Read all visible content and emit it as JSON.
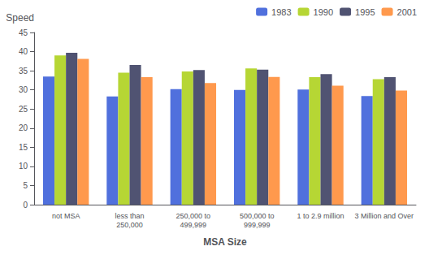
{
  "chart_data": {
    "type": "bar",
    "categories": [
      "not MSA",
      "less than\n250,000",
      "250,000 to\n499,999",
      "500,000 to\n999,999",
      "1 to 2.9 million",
      "3 Million and Over"
    ],
    "series": [
      {
        "name": "1983",
        "values": [
          33.5,
          28.3,
          30.2,
          30.0,
          30.1,
          28.4
        ]
      },
      {
        "name": "1990",
        "values": [
          39.0,
          34.5,
          34.8,
          35.6,
          33.3,
          32.8
        ]
      },
      {
        "name": "1995",
        "values": [
          39.7,
          36.5,
          35.2,
          35.3,
          34.1,
          33.3
        ]
      },
      {
        "name": "2001",
        "values": [
          38.1,
          33.3,
          31.8,
          33.4,
          31.1,
          29.8
        ]
      }
    ],
    "x_label": "MSA Size",
    "y_label": "Speed",
    "ylim": [
      0,
      45
    ],
    "yticks": [
      0,
      5,
      10,
      15,
      20,
      25,
      30,
      35,
      40,
      45
    ],
    "grid": false,
    "legend": "upper right"
  }
}
